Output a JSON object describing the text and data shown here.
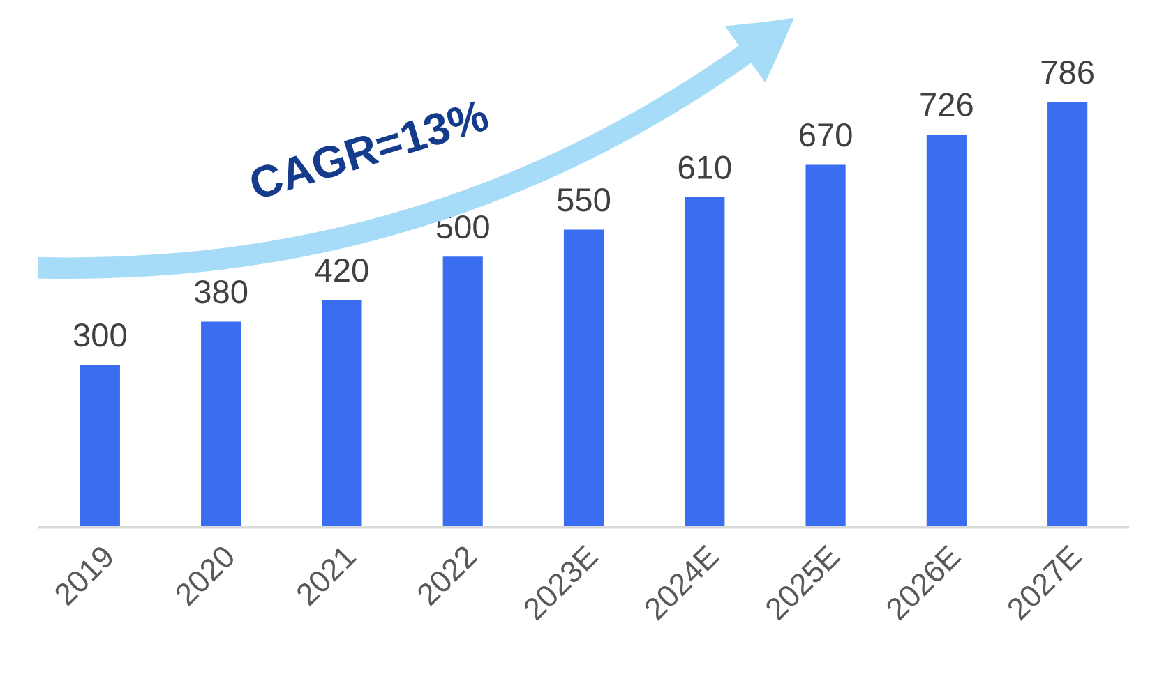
{
  "chart_data": {
    "type": "bar",
    "categories": [
      "2019",
      "2020",
      "2021",
      "2022",
      "2023E",
      "2024E",
      "2025E",
      "2026E",
      "2027E"
    ],
    "values": [
      300,
      380,
      420,
      500,
      550,
      610,
      670,
      726,
      786
    ],
    "color": "#3a6df0",
    "data_labels": true,
    "annotations": [
      "CAGR=13%"
    ]
  }
}
